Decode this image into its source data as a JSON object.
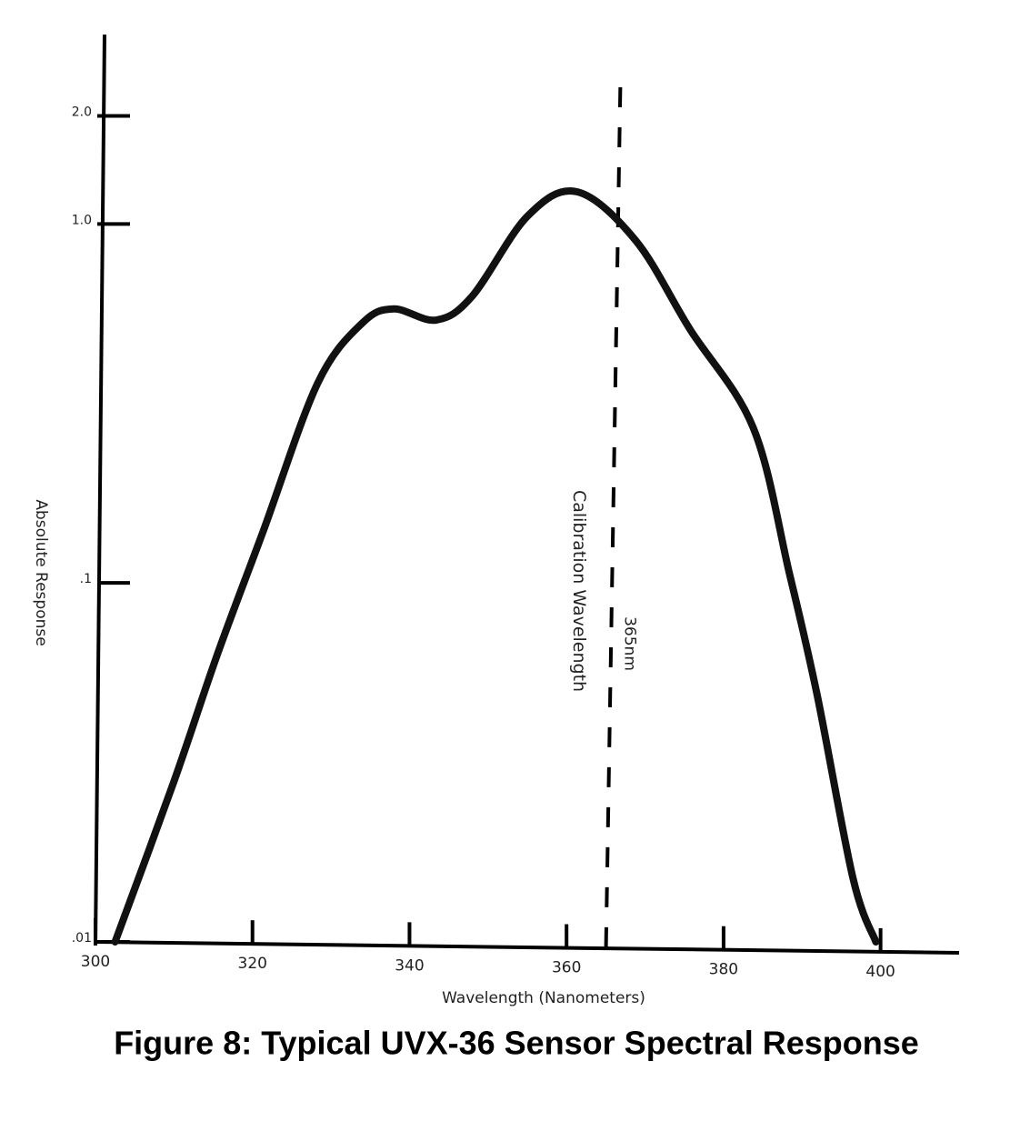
{
  "chart_data": {
    "type": "line",
    "title": "Figure 8: Typical UVX-36 Sensor Spectral Response",
    "x_label": "Wavelength (Nanometers)",
    "y_label": "Absolute Response",
    "y_scale": "log",
    "x": [
      302.5,
      310,
      315.5,
      321.4,
      328.3,
      334,
      338,
      343.4,
      348,
      355,
      361.3,
      368.8,
      375.7,
      383.8,
      388.4,
      391.9,
      396.5,
      399.4
    ],
    "values": [
      0.01,
      0.028,
      0.063,
      0.14,
      0.36,
      0.53,
      0.58,
      0.54,
      0.63,
      1.05,
      1.23,
      0.9,
      0.51,
      0.27,
      0.106,
      0.049,
      0.015,
      0.01
    ],
    "color": "#111111",
    "xlim": [
      300,
      410
    ],
    "xticks": [
      300,
      320,
      340,
      360,
      380,
      400
    ],
    "ylim": [
      0.01,
      3
    ],
    "yticks": [
      {
        "value": 0.01,
        "label": ".01"
      },
      {
        "value": 0.1,
        "label": ".1"
      },
      {
        "value": 1,
        "label": "1.0"
      },
      {
        "value": 2,
        "label": "2.0"
      }
    ],
    "reference_line": {
      "x": 365,
      "label": "365nm",
      "text": "Calibration Wavelength"
    }
  }
}
